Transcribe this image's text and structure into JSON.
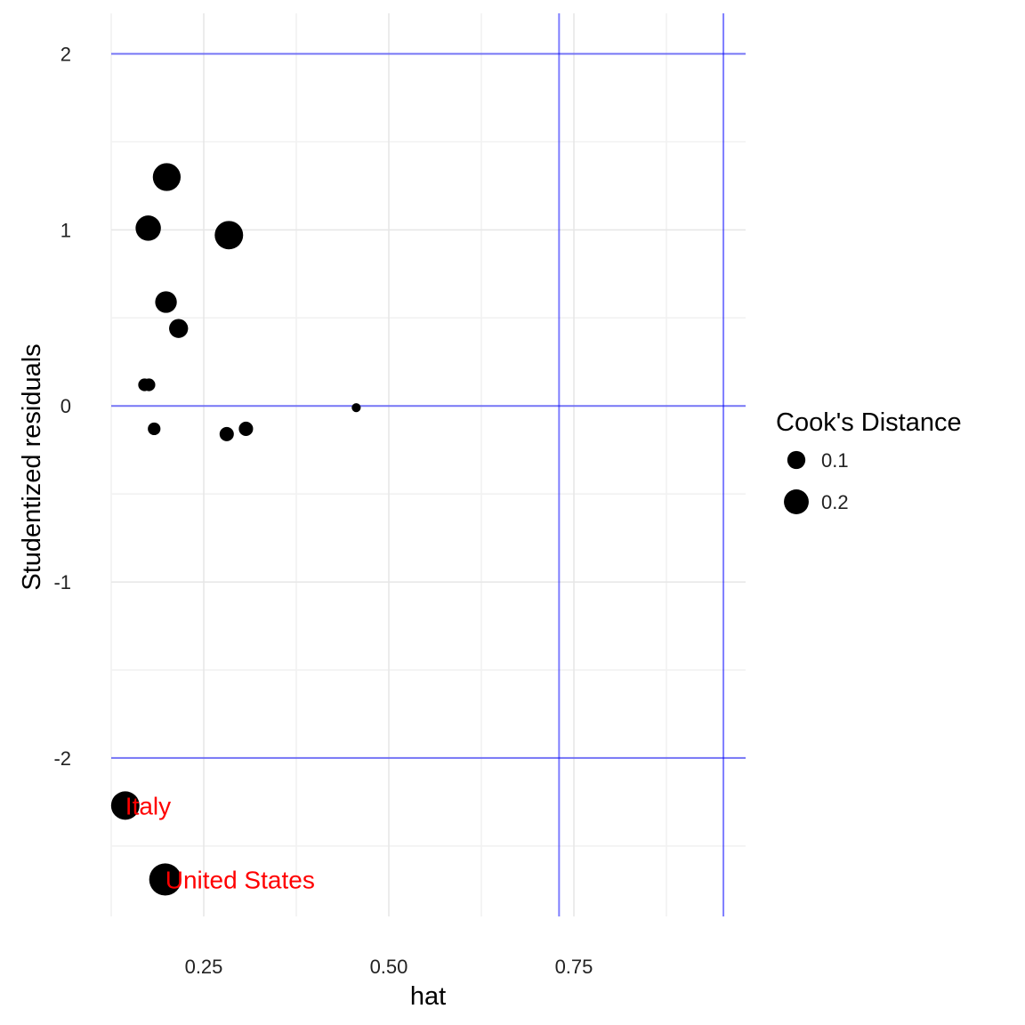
{
  "chart_data": {
    "type": "scatter",
    "xlabel": "hat",
    "ylabel": "Studentized residuals",
    "xlim": [
      0.125,
      0.982
    ],
    "ylim": [
      -2.9,
      2.23
    ],
    "x_ticks": [
      {
        "value": 0.25,
        "label": "0.25"
      },
      {
        "value": 0.5,
        "label": "0.50"
      },
      {
        "value": 0.75,
        "label": "0.75"
      }
    ],
    "y_ticks": [
      {
        "value": 2,
        "label": "2"
      },
      {
        "value": 1,
        "label": "1"
      },
      {
        "value": 0,
        "label": "0"
      },
      {
        "value": -1,
        "label": "-1"
      },
      {
        "value": -2,
        "label": "-2"
      }
    ],
    "grid": true,
    "reference_lines": {
      "horizontal": [
        2,
        0,
        -2
      ],
      "vertical": [
        0.73,
        0.952
      ],
      "color": "#0000ff"
    },
    "point_color": "#000000",
    "label_color": "#ff0000",
    "points": [
      {
        "hat": 0.2,
        "resid": 1.3,
        "cooks": 0.19
      },
      {
        "hat": 0.175,
        "resid": 1.01,
        "cooks": 0.15
      },
      {
        "hat": 0.284,
        "resid": 0.97,
        "cooks": 0.2
      },
      {
        "hat": 0.199,
        "resid": 0.59,
        "cooks": 0.1
      },
      {
        "hat": 0.216,
        "resid": 0.44,
        "cooks": 0.07
      },
      {
        "hat": 0.17,
        "resid": 0.12,
        "cooks": 0.02
      },
      {
        "hat": 0.176,
        "resid": 0.12,
        "cooks": 0.02
      },
      {
        "hat": 0.183,
        "resid": -0.13,
        "cooks": 0.02
      },
      {
        "hat": 0.281,
        "resid": -0.16,
        "cooks": 0.03
      },
      {
        "hat": 0.307,
        "resid": -0.13,
        "cooks": 0.03
      },
      {
        "hat": 0.456,
        "resid": -0.01,
        "cooks": 0.005
      },
      {
        "hat": 0.144,
        "resid": -2.27,
        "cooks": 0.2,
        "label": "Italy"
      },
      {
        "hat": 0.198,
        "resid": -2.69,
        "cooks": 0.27,
        "label": "United States"
      }
    ],
    "legend": {
      "title": "Cook's Distance",
      "placement": "right",
      "entries": [
        {
          "label": "0.1",
          "value": 0.1
        },
        {
          "label": "0.2",
          "value": 0.2
        }
      ]
    }
  }
}
